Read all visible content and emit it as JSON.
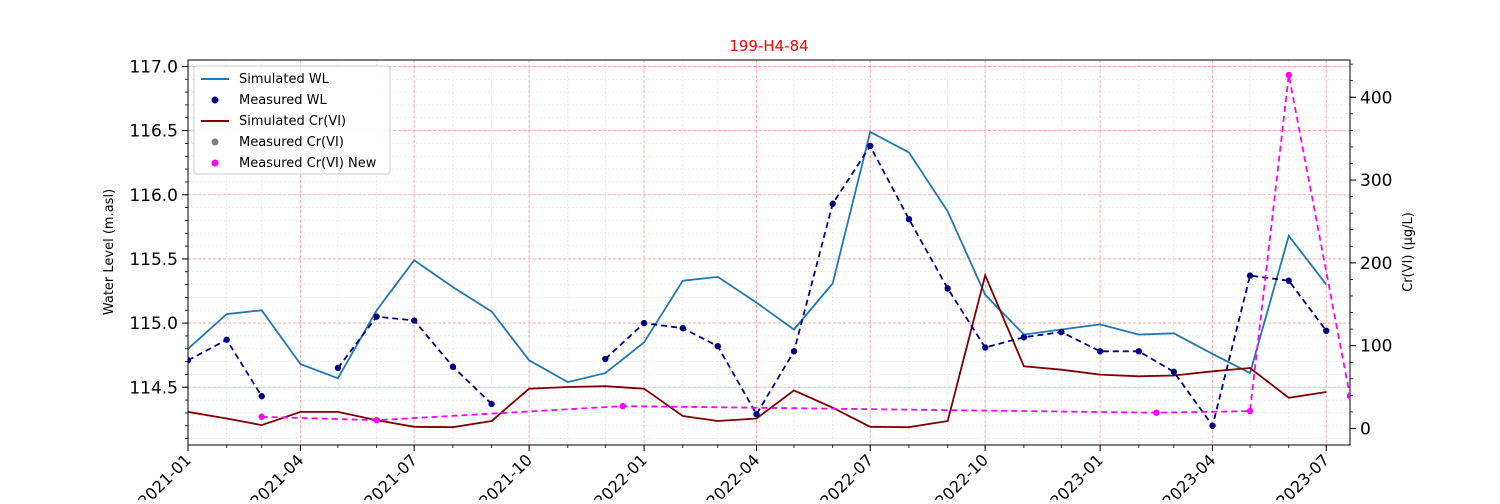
{
  "chart_data": {
    "type": "line",
    "title": "199-H4-84",
    "title_color": "#ff0000",
    "ylabel_left": "Water Level (m.asl)",
    "ylabel_right": "Cr(VI) (µg/L)",
    "xlim": [
      "2021-01-01",
      "2023-07-20"
    ],
    "ylim_left": [
      114.05,
      117.05
    ],
    "ylim_right": [
      -20,
      445
    ],
    "x_ticks": [
      "2021-01-01",
      "2021-04-01",
      "2021-07-01",
      "2021-10-01",
      "2022-01-01",
      "2022-04-01",
      "2022-07-01",
      "2022-10-01",
      "2023-01-01",
      "2023-04-01",
      "2023-07-01"
    ],
    "x_tick_labels": [
      "2021-01",
      "2021-04",
      "2021-07",
      "2021-10",
      "2022-01",
      "2022-04",
      "2022-07",
      "2022-10",
      "2023-01",
      "2023-04",
      "2023-07"
    ],
    "y_left_ticks": [
      114.5,
      115.0,
      115.5,
      116.0,
      116.5,
      117.0
    ],
    "y_left_tick_labels": [
      "114.5",
      "115.0",
      "115.5",
      "116.0",
      "116.5",
      "117.0"
    ],
    "y_right_ticks": [
      0,
      100,
      200,
      300,
      400
    ],
    "y_right_tick_labels": [
      "0",
      "100",
      "200",
      "300",
      "400"
    ],
    "grid": "on (major red, minor gray)",
    "legend_placement": "upper-left",
    "series": [
      {
        "name": "Simulated WL",
        "axis": "left",
        "style": "solid",
        "color": "#1f77b4",
        "x": [
          "2021-01-01",
          "2021-02-01",
          "2021-03-01",
          "2021-04-01",
          "2021-05-01",
          "2021-06-01",
          "2021-07-01",
          "2021-08-01",
          "2021-09-01",
          "2021-10-01",
          "2021-11-01",
          "2021-12-01",
          "2022-01-01",
          "2022-02-01",
          "2022-03-01",
          "2022-04-01",
          "2022-05-01",
          "2022-06-01",
          "2022-07-01",
          "2022-08-01",
          "2022-09-01",
          "2022-10-01",
          "2022-11-01",
          "2022-12-01",
          "2023-01-01",
          "2023-02-01",
          "2023-03-01",
          "2023-04-01",
          "2023-05-01",
          "2023-06-01",
          "2023-07-01"
        ],
        "y": [
          114.8,
          115.07,
          115.1,
          114.68,
          114.57,
          115.1,
          115.49,
          115.28,
          115.09,
          114.71,
          114.54,
          114.61,
          114.85,
          115.33,
          115.36,
          115.16,
          114.95,
          115.31,
          116.49,
          116.33,
          115.87,
          115.22,
          114.91,
          114.95,
          114.99,
          114.91,
          114.92,
          114.76,
          114.61,
          115.68,
          115.3
        ]
      },
      {
        "name": "Measured WL",
        "axis": "left",
        "style": "markers",
        "color": "#000080",
        "x": [
          "2021-01-01",
          "2021-02-01",
          "2021-03-01",
          "2021-05-01",
          "2021-06-01",
          "2021-07-01",
          "2021-08-01",
          "2021-09-01",
          "2021-12-01",
          "2022-01-01",
          "2022-02-01",
          "2022-03-01",
          "2022-04-01",
          "2022-05-01",
          "2022-06-01",
          "2022-07-01",
          "2022-08-01",
          "2022-09-01",
          "2022-10-01",
          "2022-11-01",
          "2022-12-01",
          "2023-01-01",
          "2023-02-01",
          "2023-03-01",
          "2023-04-01",
          "2023-05-01",
          "2023-06-01",
          "2023-07-01"
        ],
        "y": [
          114.71,
          114.87,
          114.43,
          114.65,
          115.05,
          115.02,
          114.66,
          114.37,
          114.72,
          115.0,
          114.96,
          114.82,
          114.29,
          114.78,
          115.93,
          116.38,
          115.81,
          115.27,
          114.81,
          114.89,
          114.93,
          114.78,
          114.78,
          114.62,
          114.2,
          115.37,
          115.33,
          114.94
        ]
      },
      {
        "name": "Simulated Cr(VI)",
        "axis": "right",
        "style": "solid",
        "color": "#800000",
        "x": [
          "2021-01-01",
          "2021-02-01",
          "2021-03-01",
          "2021-04-01",
          "2021-05-01",
          "2021-06-01",
          "2021-07-01",
          "2021-08-01",
          "2021-09-01",
          "2021-10-01",
          "2021-11-01",
          "2021-12-01",
          "2022-01-01",
          "2022-02-01",
          "2022-03-01",
          "2022-04-01",
          "2022-05-01",
          "2022-06-01",
          "2022-07-01",
          "2022-08-01",
          "2022-09-01",
          "2022-10-01",
          "2022-11-01",
          "2022-12-01",
          "2023-01-01",
          "2023-02-01",
          "2023-03-01",
          "2023-04-01",
          "2023-05-01",
          "2023-06-01",
          "2023-07-01"
        ],
        "y": [
          20,
          12,
          4,
          20,
          20,
          10,
          2,
          1.5,
          9,
          48,
          50,
          51,
          48,
          15,
          9,
          12,
          46,
          25,
          2,
          1.5,
          9,
          185,
          75,
          71,
          65,
          63,
          64,
          69,
          73,
          37,
          44
        ]
      },
      {
        "name": "Measured Cr(VI) New",
        "axis": "right",
        "style": "markers",
        "color": "#ff00ff",
        "x": [
          "2021-03-01",
          "2021-06-01",
          "2021-12-15",
          "2023-02-15",
          "2023-05-01",
          "2023-06-01",
          "2023-07-20"
        ],
        "y": [
          14,
          10,
          27,
          19,
          21,
          427,
          39
        ]
      },
      {
        "name": "Measured Cr(VI)",
        "axis": "right",
        "style": "markers",
        "color": "#808080",
        "x": [],
        "y": []
      }
    ]
  }
}
